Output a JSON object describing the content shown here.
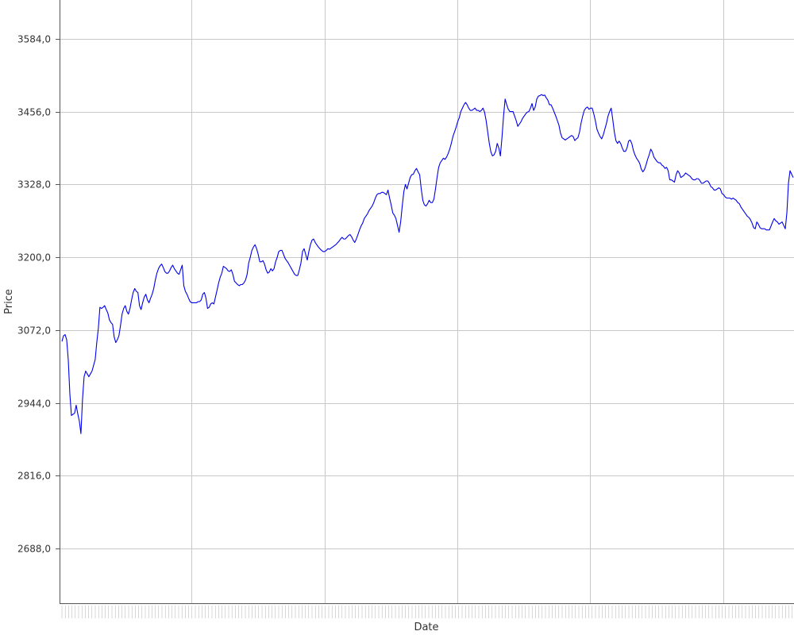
{
  "chart_data": {
    "type": "line",
    "title": "",
    "xlabel": "Date",
    "ylabel": "Price",
    "ylim": [
      2592,
      3652
    ],
    "yticks": [
      2688,
      2816,
      2944,
      3072,
      3200,
      3328,
      3456,
      3584
    ],
    "ytick_labels": [
      "2688,0",
      "2816,0",
      "2944,0",
      "3072,0",
      "3200,0",
      "3328,0",
      "3456,0",
      "3584,0"
    ],
    "grid": true,
    "legend": "none",
    "colors": {
      "series": "#0000ee",
      "grid": "#c8c8c8",
      "axis": "#555555"
    },
    "series": [
      {
        "values": [
          3052,
          3062,
          3064,
          3055,
          3020,
          2960,
          2922,
          2924,
          2926,
          2940,
          2925,
          2912,
          2890,
          2950,
          2990,
          3000,
          2995,
          2990,
          2995,
          3000,
          3010,
          3020,
          3050,
          3075,
          3112,
          3110,
          3112,
          3115,
          3108,
          3102,
          3090,
          3085,
          3082,
          3060,
          3050,
          3055,
          3062,
          3080,
          3100,
          3110,
          3115,
          3105,
          3100,
          3110,
          3125,
          3138,
          3145,
          3140,
          3138,
          3115,
          3108,
          3120,
          3130,
          3135,
          3125,
          3120,
          3128,
          3135,
          3145,
          3160,
          3172,
          3180,
          3185,
          3188,
          3182,
          3175,
          3172,
          3172,
          3176,
          3182,
          3186,
          3180,
          3176,
          3172,
          3170,
          3178,
          3186,
          3150,
          3140,
          3135,
          3128,
          3122,
          3120,
          3120,
          3120,
          3120,
          3122,
          3122,
          3125,
          3135,
          3138,
          3128,
          3110,
          3112,
          3118,
          3120,
          3118,
          3130,
          3142,
          3155,
          3165,
          3172,
          3184,
          3182,
          3180,
          3176,
          3175,
          3178,
          3170,
          3158,
          3155,
          3152,
          3150,
          3152,
          3152,
          3155,
          3160,
          3170,
          3190,
          3200,
          3212,
          3218,
          3222,
          3215,
          3205,
          3192,
          3192,
          3194,
          3188,
          3178,
          3172,
          3174,
          3180,
          3176,
          3180,
          3192,
          3200,
          3210,
          3212,
          3212,
          3205,
          3198,
          3194,
          3190,
          3185,
          3180,
          3175,
          3170,
          3168,
          3168,
          3178,
          3190,
          3210,
          3215,
          3205,
          3195,
          3210,
          3222,
          3230,
          3232,
          3226,
          3222,
          3218,
          3215,
          3212,
          3210,
          3210,
          3212,
          3215,
          3214,
          3216,
          3218,
          3220,
          3222,
          3225,
          3228,
          3232,
          3235,
          3232,
          3232,
          3235,
          3238,
          3240,
          3236,
          3230,
          3226,
          3232,
          3240,
          3248,
          3255,
          3260,
          3268,
          3272,
          3276,
          3282,
          3286,
          3290,
          3296,
          3304,
          3310,
          3312,
          3312,
          3314,
          3314,
          3312,
          3310,
          3318,
          3304,
          3292,
          3278,
          3274,
          3268,
          3256,
          3244,
          3262,
          3290,
          3315,
          3328,
          3320,
          3330,
          3340,
          3345,
          3346,
          3352,
          3356,
          3350,
          3345,
          3320,
          3300,
          3292,
          3290,
          3294,
          3300,
          3296,
          3296,
          3302,
          3320,
          3340,
          3358,
          3366,
          3370,
          3374,
          3372,
          3376,
          3382,
          3390,
          3400,
          3412,
          3420,
          3428,
          3438,
          3445,
          3456,
          3462,
          3468,
          3472,
          3468,
          3462,
          3458,
          3458,
          3460,
          3462,
          3458,
          3458,
          3456,
          3458,
          3462,
          3455,
          3440,
          3420,
          3400,
          3385,
          3378,
          3380,
          3386,
          3400,
          3392,
          3378,
          3410,
          3448,
          3478,
          3468,
          3460,
          3456,
          3456,
          3456,
          3448,
          3440,
          3430,
          3434,
          3438,
          3444,
          3448,
          3452,
          3455,
          3456,
          3462,
          3470,
          3458,
          3464,
          3478,
          3483,
          3484,
          3486,
          3484,
          3485,
          3480,
          3476,
          3468,
          3468,
          3462,
          3455,
          3448,
          3440,
          3432,
          3418,
          3410,
          3408,
          3406,
          3408,
          3410,
          3412,
          3414,
          3412,
          3405,
          3408,
          3410,
          3420,
          3436,
          3448,
          3458,
          3462,
          3464,
          3460,
          3462,
          3462,
          3452,
          3440,
          3425,
          3418,
          3412,
          3408,
          3415,
          3425,
          3435,
          3448,
          3456,
          3462,
          3442,
          3420,
          3405,
          3400,
          3404,
          3400,
          3392,
          3386,
          3386,
          3392,
          3404,
          3406,
          3400,
          3388,
          3380,
          3374,
          3370,
          3365,
          3355,
          3350,
          3354,
          3362,
          3372,
          3380,
          3390,
          3385,
          3376,
          3372,
          3368,
          3366,
          3366,
          3362,
          3360,
          3356,
          3358,
          3352,
          3336,
          3336,
          3334,
          3332,
          3345,
          3352,
          3348,
          3340,
          3342,
          3344,
          3348,
          3346,
          3344,
          3342,
          3338,
          3336,
          3336,
          3338,
          3338,
          3335,
          3330,
          3330,
          3332,
          3334,
          3334,
          3330,
          3324,
          3322,
          3318,
          3318,
          3320,
          3322,
          3320,
          3312,
          3310,
          3306,
          3304,
          3304,
          3304,
          3302,
          3304,
          3302,
          3300,
          3296,
          3294,
          3288,
          3284,
          3280,
          3276,
          3272,
          3270,
          3266,
          3260,
          3252,
          3250,
          3262,
          3258,
          3252,
          3250,
          3250,
          3250,
          3248,
          3248,
          3248,
          3255,
          3262,
          3268,
          3264,
          3262,
          3258,
          3260,
          3262,
          3256,
          3250,
          3278,
          3330,
          3352,
          3346,
          3340
        ]
      }
    ]
  }
}
